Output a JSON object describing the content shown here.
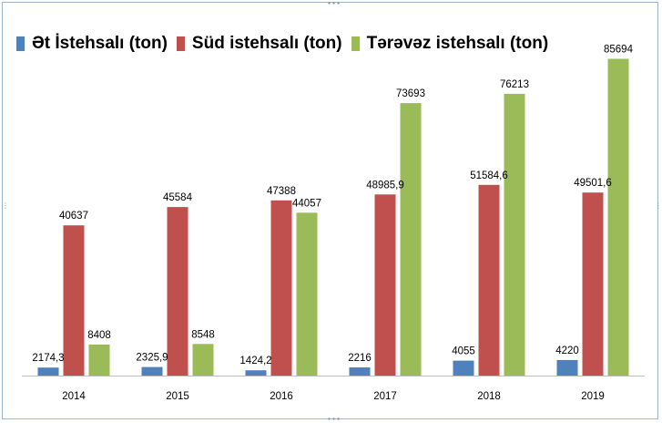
{
  "chart_data": {
    "type": "bar",
    "title": "",
    "xlabel": "",
    "ylabel": "",
    "ylim": [
      0,
      90000
    ],
    "grid": false,
    "legend_position": "top",
    "categories": [
      "2014",
      "2015",
      "2016",
      "2017",
      "2018",
      "2019"
    ],
    "series": [
      {
        "name": "Ət İstehsalı (ton)",
        "color": "#4f81bd",
        "values": [
          2174.3,
          2325.9,
          1424.2,
          2216,
          4055,
          4220
        ],
        "labels": [
          "2174,3",
          "2325,9",
          "1424,2",
          "2216",
          "4055",
          "4220"
        ]
      },
      {
        "name": "Süd istehsalı (ton)",
        "color": "#c0504d",
        "values": [
          40637,
          45584,
          47388,
          48985.9,
          51584.6,
          49501.6
        ],
        "labels": [
          "40637",
          "45584",
          "47388",
          "48985,9",
          "51584,6",
          "49501,6"
        ]
      },
      {
        "name": "Tərəvəz istehsalı (ton)",
        "color": "#9bbb59",
        "values": [
          8408,
          8548,
          44057,
          73693,
          76213,
          85694
        ],
        "labels": [
          "8408",
          "8548",
          "44057",
          "73693",
          "76213",
          "85694"
        ]
      }
    ]
  }
}
